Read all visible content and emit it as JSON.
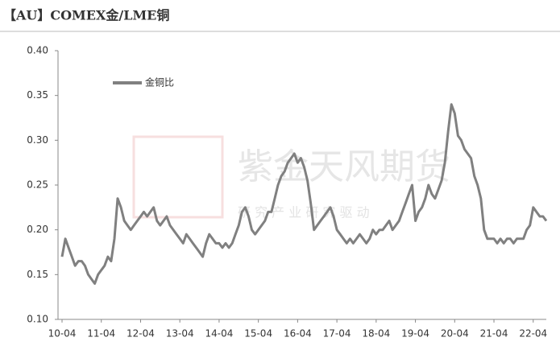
{
  "chart_data": {
    "type": "line",
    "title": "【AU】COMEX金/LME铜",
    "watermark": "紫金天风期货",
    "watermark_sub": "研 究 产 业   研 究 驱 动",
    "categories": [
      "10-04",
      null,
      null,
      null,
      null,
      null,
      null,
      null,
      null,
      null,
      null,
      null,
      "11-04",
      null,
      null,
      null,
      null,
      null,
      null,
      null,
      null,
      null,
      null,
      null,
      "12-04",
      null,
      null,
      null,
      null,
      null,
      null,
      null,
      null,
      null,
      null,
      null,
      "13-04",
      null,
      null,
      null,
      null,
      null,
      null,
      null,
      null,
      null,
      null,
      null,
      "14-04",
      null,
      null,
      null,
      null,
      null,
      null,
      null,
      null,
      null,
      null,
      null,
      "15-04",
      null,
      null,
      null,
      null,
      null,
      null,
      null,
      null,
      null,
      null,
      null,
      "16-04",
      null,
      null,
      null,
      null,
      null,
      null,
      null,
      null,
      null,
      null,
      null,
      "17-04",
      null,
      null,
      null,
      null,
      null,
      null,
      null,
      null,
      null,
      null,
      null,
      "18-04",
      null,
      null,
      null,
      null,
      null,
      null,
      null,
      null,
      null,
      null,
      null,
      "19-04",
      null,
      null,
      null,
      null,
      null,
      null,
      null,
      null,
      null,
      null,
      null,
      "20-04",
      null,
      null,
      null,
      null,
      null,
      null,
      null,
      null,
      null,
      null,
      null,
      "21-04",
      null,
      null,
      null,
      null,
      null,
      null,
      null,
      null,
      null,
      null,
      null,
      "22-04",
      null,
      null,
      null,
      null
    ],
    "series": [
      {
        "name": "金铜比",
        "color": "#808080",
        "values": [
          0.17,
          0.19,
          0.18,
          0.17,
          0.16,
          0.165,
          0.165,
          0.16,
          0.15,
          0.145,
          0.14,
          0.15,
          0.155,
          0.16,
          0.17,
          0.165,
          0.19,
          0.235,
          0.225,
          0.21,
          0.205,
          0.2,
          0.205,
          0.21,
          0.215,
          0.22,
          0.215,
          0.22,
          0.225,
          0.21,
          0.205,
          0.21,
          0.215,
          0.205,
          0.2,
          0.195,
          0.19,
          0.185,
          0.195,
          0.19,
          0.185,
          0.18,
          0.175,
          0.17,
          0.185,
          0.195,
          0.19,
          0.185,
          0.185,
          0.18,
          0.185,
          0.18,
          0.185,
          0.195,
          0.205,
          0.22,
          0.225,
          0.215,
          0.2,
          0.195,
          0.2,
          0.205,
          0.21,
          0.22,
          0.22,
          0.235,
          0.25,
          0.26,
          0.265,
          0.275,
          0.28,
          0.285,
          0.275,
          0.28,
          0.27,
          0.255,
          0.23,
          0.2,
          0.205,
          0.21,
          0.215,
          0.22,
          0.225,
          0.215,
          0.2,
          0.195,
          0.19,
          0.185,
          0.19,
          0.185,
          0.19,
          0.195,
          0.19,
          0.185,
          0.19,
          0.2,
          0.195,
          0.2,
          0.2,
          0.205,
          0.21,
          0.2,
          0.205,
          0.21,
          0.22,
          0.23,
          0.24,
          0.25,
          0.21,
          0.22,
          0.225,
          0.235,
          0.25,
          0.24,
          0.235,
          0.245,
          0.255,
          0.275,
          0.31,
          0.34,
          0.33,
          0.305,
          0.3,
          0.29,
          0.285,
          0.28,
          0.26,
          0.25,
          0.235,
          0.2,
          0.19,
          0.19,
          0.19,
          0.185,
          0.19,
          0.185,
          0.19,
          0.19,
          0.185,
          0.19,
          0.19,
          0.19,
          0.2,
          0.205,
          0.225,
          0.22,
          0.215,
          0.215,
          0.21
        ]
      }
    ],
    "ylim": [
      0.1,
      0.4
    ],
    "yticks": [
      {
        "value": 0.1,
        "label": "0.10"
      },
      {
        "value": 0.15,
        "label": "0.15"
      },
      {
        "value": 0.2,
        "label": "0.20"
      },
      {
        "value": 0.25,
        "label": "0.25"
      },
      {
        "value": 0.3,
        "label": "0.30"
      },
      {
        "value": 0.35,
        "label": "0.35"
      },
      {
        "value": 0.4,
        "label": "0.40"
      }
    ],
    "grid": false,
    "legend": "top-left"
  }
}
